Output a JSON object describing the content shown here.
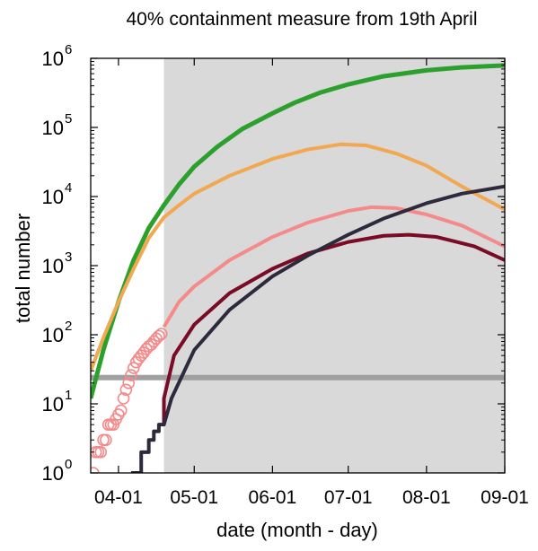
{
  "chart_data": {
    "type": "line",
    "title": "40% containment measure from 19th April",
    "xlabel": "date (month - day)",
    "ylabel": "total number",
    "x_type": "date",
    "x_range": [
      "2020-03-21",
      "2020-09-01"
    ],
    "x_ticks": [
      {
        "date": "2020-04-01",
        "label": "04-01"
      },
      {
        "date": "2020-05-01",
        "label": "05-01"
      },
      {
        "date": "2020-06-01",
        "label": "06-01"
      },
      {
        "date": "2020-07-01",
        "label": "07-01"
      },
      {
        "date": "2020-08-01",
        "label": "08-01"
      },
      {
        "date": "2020-09-01",
        "label": "09-01"
      }
    ],
    "y_scale": "log",
    "ylim": [
      1,
      1000000
    ],
    "y_ticks": [
      {
        "value": 1,
        "base": "10",
        "exp": "0"
      },
      {
        "value": 10,
        "base": "10",
        "exp": "1"
      },
      {
        "value": 100,
        "base": "10",
        "exp": "2"
      },
      {
        "value": 1000,
        "base": "10",
        "exp": "3"
      },
      {
        "value": 10000,
        "base": "10",
        "exp": "4"
      },
      {
        "value": 100000,
        "base": "10",
        "exp": "5"
      },
      {
        "value": 1000000,
        "base": "10",
        "exp": "6"
      }
    ],
    "shaded_region": {
      "from": "2020-04-19",
      "to": "2020-09-01",
      "color": "#d9d9d9"
    },
    "grid": false,
    "series": [
      {
        "color": "#2ca02c",
        "width": 5,
        "points": [
          [
            "2020-03-21",
            12
          ],
          [
            "2020-03-26",
            60
          ],
          [
            "2020-04-01",
            300
          ],
          [
            "2020-04-07",
            1200
          ],
          [
            "2020-04-13",
            3500
          ],
          [
            "2020-04-19",
            7500
          ],
          [
            "2020-04-25",
            15000
          ],
          [
            "2020-05-01",
            27000
          ],
          [
            "2020-05-10",
            52000
          ],
          [
            "2020-05-20",
            95000
          ],
          [
            "2020-06-01",
            160000
          ],
          [
            "2020-06-10",
            230000
          ],
          [
            "2020-06-20",
            320000
          ],
          [
            "2020-07-01",
            420000
          ],
          [
            "2020-07-15",
            550000
          ],
          [
            "2020-08-01",
            670000
          ],
          [
            "2020-08-15",
            740000
          ],
          [
            "2020-09-01",
            790000
          ]
        ]
      },
      {
        "color": "#f2a850",
        "width": 4,
        "points": [
          [
            "2020-03-21",
            30
          ],
          [
            "2020-03-26",
            90
          ],
          [
            "2020-04-01",
            300
          ],
          [
            "2020-04-07",
            900
          ],
          [
            "2020-04-13",
            2500
          ],
          [
            "2020-04-19",
            5000
          ],
          [
            "2020-04-25",
            7500
          ],
          [
            "2020-05-01",
            11000
          ],
          [
            "2020-05-15",
            20000
          ],
          [
            "2020-06-01",
            35000
          ],
          [
            "2020-06-15",
            48000
          ],
          [
            "2020-06-28",
            57000
          ],
          [
            "2020-07-08",
            55000
          ],
          [
            "2020-07-20",
            42000
          ],
          [
            "2020-08-01",
            28000
          ],
          [
            "2020-08-15",
            14000
          ],
          [
            "2020-09-01",
            6500
          ]
        ]
      },
      {
        "color": "#f48a8a",
        "width": 4,
        "points": [
          [
            "2020-04-19",
            130
          ],
          [
            "2020-04-25",
            300
          ],
          [
            "2020-05-01",
            500
          ],
          [
            "2020-05-15",
            1200
          ],
          [
            "2020-06-01",
            2600
          ],
          [
            "2020-06-15",
            4200
          ],
          [
            "2020-07-01",
            6200
          ],
          [
            "2020-07-10",
            7000
          ],
          [
            "2020-07-20",
            6800
          ],
          [
            "2020-08-01",
            5500
          ],
          [
            "2020-08-15",
            3800
          ],
          [
            "2020-09-01",
            1900
          ]
        ]
      },
      {
        "color": "#7a0a25",
        "width": 4,
        "points": [
          [
            "2020-04-19",
            5
          ],
          [
            "2020-04-19",
            12
          ],
          [
            "2020-04-23",
            50
          ],
          [
            "2020-05-01",
            140
          ],
          [
            "2020-05-15",
            400
          ],
          [
            "2020-06-01",
            900
          ],
          [
            "2020-06-15",
            1500
          ],
          [
            "2020-07-01",
            2200
          ],
          [
            "2020-07-15",
            2700
          ],
          [
            "2020-07-25",
            2800
          ],
          [
            "2020-08-05",
            2600
          ],
          [
            "2020-08-20",
            1900
          ],
          [
            "2020-09-01",
            1200
          ]
        ]
      },
      {
        "color": "#2e2a3e",
        "width": 4,
        "points": [
          [
            "2020-04-06",
            1
          ],
          [
            "2020-04-10",
            1
          ],
          [
            "2020-04-10",
            2
          ],
          [
            "2020-04-13",
            2
          ],
          [
            "2020-04-13",
            3
          ],
          [
            "2020-04-15",
            3
          ],
          [
            "2020-04-15",
            4
          ],
          [
            "2020-04-17",
            4
          ],
          [
            "2020-04-17",
            5
          ],
          [
            "2020-04-19",
            5
          ],
          [
            "2020-04-22",
            12
          ],
          [
            "2020-05-01",
            60
          ],
          [
            "2020-05-15",
            230
          ],
          [
            "2020-06-01",
            700
          ],
          [
            "2020-06-15",
            1400
          ],
          [
            "2020-07-01",
            2800
          ],
          [
            "2020-07-15",
            4800
          ],
          [
            "2020-08-01",
            8000
          ],
          [
            "2020-08-15",
            11000
          ],
          [
            "2020-09-01",
            14000
          ]
        ]
      }
    ],
    "observed": {
      "color": "#f48a8a",
      "marker": "open-circle",
      "points": [
        [
          "2020-03-22",
          1
        ],
        [
          "2020-03-23",
          2
        ],
        [
          "2020-03-24",
          2
        ],
        [
          "2020-03-25",
          2
        ],
        [
          "2020-03-26",
          3
        ],
        [
          "2020-03-27",
          3
        ],
        [
          "2020-03-28",
          5
        ],
        [
          "2020-03-29",
          5
        ],
        [
          "2020-03-30",
          5
        ],
        [
          "2020-03-31",
          6
        ],
        [
          "2020-04-01",
          7
        ],
        [
          "2020-04-02",
          8
        ],
        [
          "2020-04-03",
          12
        ],
        [
          "2020-04-04",
          16
        ],
        [
          "2020-04-05",
          20
        ],
        [
          "2020-04-06",
          26
        ],
        [
          "2020-04-07",
          33
        ],
        [
          "2020-04-08",
          40
        ],
        [
          "2020-04-09",
          45
        ],
        [
          "2020-04-10",
          50
        ],
        [
          "2020-04-11",
          55
        ],
        [
          "2020-04-12",
          62
        ],
        [
          "2020-04-13",
          68
        ],
        [
          "2020-04-14",
          72
        ],
        [
          "2020-04-15",
          80
        ],
        [
          "2020-04-16",
          88
        ],
        [
          "2020-04-17",
          96
        ],
        [
          "2020-04-18",
          103
        ]
      ]
    },
    "reference_line": {
      "value": 24,
      "color": "#a0a0a0"
    }
  }
}
